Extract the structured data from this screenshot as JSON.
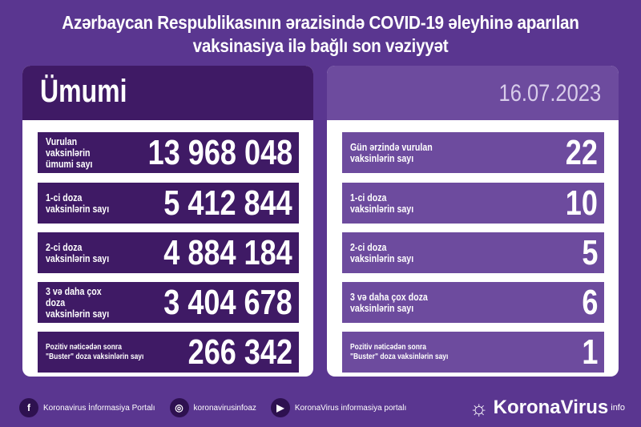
{
  "title": {
    "line1": "Azərbaycan Respublikasının ərazisində COVID-19 əleyhinə aparılan",
    "line2": "vaksinasiya ilə bağlı son vəziyyət"
  },
  "left": {
    "header": "Ümumi",
    "rows": [
      {
        "label": "Vurulan vaksinlərin\nümumi sayı",
        "value": "13 968 048"
      },
      {
        "label": "1-ci doza\nvaksinlərin sayı",
        "value": "5 412 844"
      },
      {
        "label": "2-ci doza\nvaksinlərin sayı",
        "value": "4 884 184"
      },
      {
        "label": "3 və daha çox doza\nvaksinlərin sayı",
        "value": "3 404 678"
      },
      {
        "label": "Pozitiv nəticədən sonra\n\"Buster\" doza vaksinlərin sayı",
        "value": "266 342"
      }
    ]
  },
  "right": {
    "date": "16.07.2023",
    "rows": [
      {
        "label": "Gün ərzində vurulan\nvaksinlərin sayı",
        "value": "22"
      },
      {
        "label": "1-ci doza\nvaksinlərin sayı",
        "value": "10"
      },
      {
        "label": "2-ci doza\nvaksinlərin sayı",
        "value": "5"
      },
      {
        "label": "3 və daha çox doza\nvaksinlərin sayı",
        "value": "6"
      },
      {
        "label": "Pozitiv nəticədən sonra\n\"Buster\" doza vaksinlərin sayı",
        "value": "1"
      }
    ]
  },
  "footer": {
    "facebook": "Koronavirus İnformasiya Portalı",
    "instagram": "koronavirusinfoaz",
    "youtube": "KoronaVirus informasiya portalı",
    "brand": "KoronaVirus",
    "brand_sup": "info"
  },
  "colors": {
    "background": "#5a3690",
    "dark_row": "#3f1a65",
    "light_row": "#6d4b9e"
  }
}
